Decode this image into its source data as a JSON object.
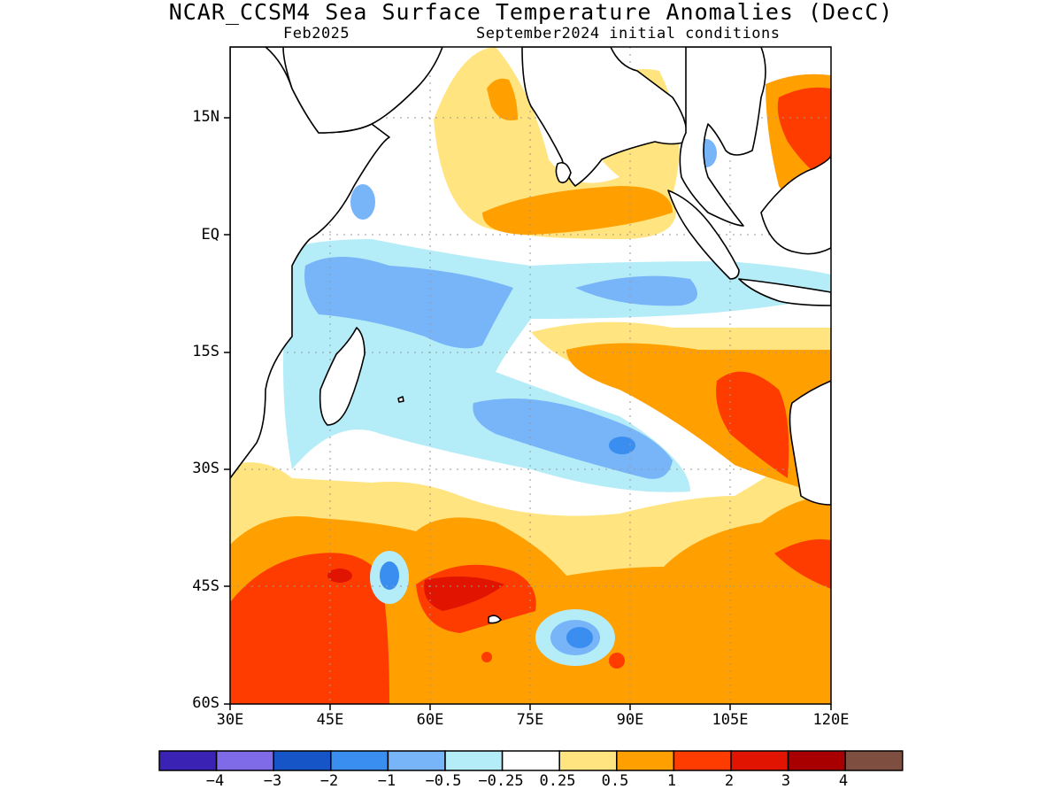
{
  "title": "NCAR_CCSM4 Sea Surface Temperature Anomalies (DecC)",
  "subtitle_left": "Feb2025",
  "subtitle_right": "September2024 initial conditions",
  "axes": {
    "lat_ticks": [
      "15N",
      "EQ",
      "15S",
      "30S",
      "45S",
      "60S"
    ],
    "lon_ticks": [
      "30E",
      "45E",
      "60E",
      "75E",
      "90E",
      "105E",
      "120E"
    ]
  },
  "colorbar": {
    "colors": [
      "#3a22b4",
      "#7f6ae8",
      "#1655c8",
      "#3a8ef0",
      "#78b4f8",
      "#b4ecf8",
      "#ffffff",
      "#ffe480",
      "#ffa000",
      "#ff3c00",
      "#e01400",
      "#a80000",
      "#7e4f40"
    ],
    "labels": [
      "−4",
      "−3",
      "−2",
      "−1",
      "−0.5",
      "−0.25",
      "0.25",
      "0.5",
      "1",
      "2",
      "3",
      "4"
    ]
  },
  "legend_colors": {
    "ocean_white": "#ffffff",
    "coast": "#000000",
    "grid": "#9a9a9a"
  }
}
